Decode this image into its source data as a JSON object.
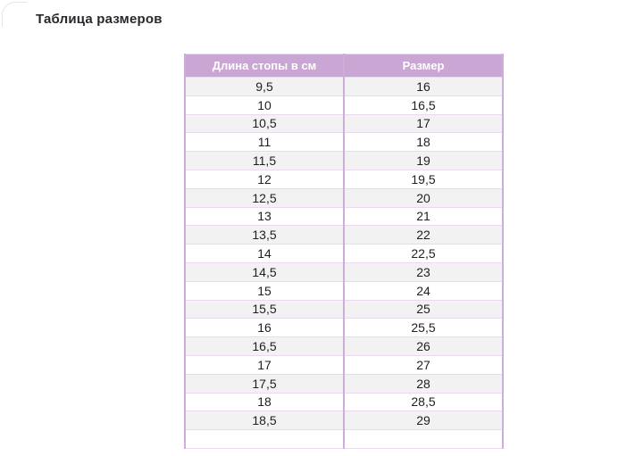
{
  "page": {
    "title": "Таблица размеров"
  },
  "size_table": {
    "columns": [
      "Длина стопы в см",
      "Размер"
    ],
    "rows": [
      [
        "9,5",
        "16"
      ],
      [
        "10",
        "16,5"
      ],
      [
        "10,5",
        "17"
      ],
      [
        "11",
        "18"
      ],
      [
        "11,5",
        "19"
      ],
      [
        "12",
        "19,5"
      ],
      [
        "12,5",
        "20"
      ],
      [
        "13",
        "21"
      ],
      [
        "13,5",
        "22"
      ],
      [
        "14",
        "22,5"
      ],
      [
        "14,5",
        "23"
      ],
      [
        "15",
        "24"
      ],
      [
        "15,5",
        "25"
      ],
      [
        "16",
        "25,5"
      ],
      [
        "16,5",
        "26"
      ],
      [
        "17",
        "27"
      ],
      [
        "17,5",
        "28"
      ],
      [
        "18",
        "28,5"
      ],
      [
        "18,5",
        "29"
      ]
    ],
    "colors": {
      "header_bg": "#c9a6d4",
      "header_text": "#ffffff",
      "border": "#cdaed6",
      "border_light": "#eadaf0",
      "row_alt_bg": "#f2f2f2",
      "row_bg": "#ffffff"
    }
  }
}
